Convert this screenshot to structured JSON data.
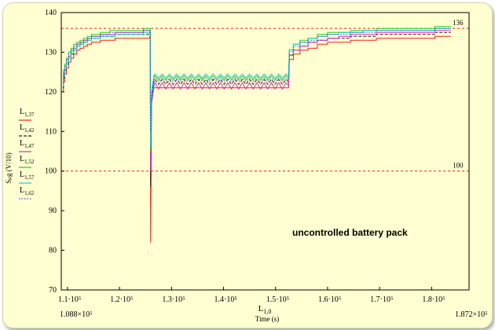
{
  "chart_data": {
    "type": "line",
    "title": "",
    "xlabel": "Time (s)",
    "xvar_label": {
      "main": "L",
      "sub": "1,0"
    },
    "ylabel": "Sₚg (V/10)",
    "xlim": [
      108800,
      187200
    ],
    "ylim": [
      70,
      140
    ],
    "x_ticks": [
      {
        "value": 110000,
        "label": "1.1·10⁵"
      },
      {
        "value": 120000,
        "label": "1.2·10⁵"
      },
      {
        "value": 130000,
        "label": "1.3·10⁵"
      },
      {
        "value": 140000,
        "label": "1.4·10⁵"
      },
      {
        "value": 150000,
        "label": "1.5·10⁵"
      },
      {
        "value": 160000,
        "label": "1.6·10⁵"
      },
      {
        "value": 170000,
        "label": "1.7·10⁵"
      },
      {
        "value": 180000,
        "label": "1.8·10⁵"
      }
    ],
    "x_range_labels": {
      "min": "1.088×10⁵",
      "max": "1.872×10⁵"
    },
    "y_ticks": [
      {
        "value": 140,
        "label": "140"
      },
      {
        "value": 130,
        "label": "130"
      },
      {
        "value": 120,
        "label": "120"
      },
      {
        "value": 110,
        "label": "110"
      },
      {
        "value": 100,
        "label": "100"
      },
      {
        "value": 90,
        "label": "90"
      },
      {
        "value": 80,
        "label": "80"
      },
      {
        "value": 70,
        "label": "70"
      }
    ],
    "reference_lines": [
      {
        "value": 136,
        "label": "136",
        "color": "#e8231f"
      },
      {
        "value": 100,
        "label": "100",
        "color": "#e8231f"
      }
    ],
    "annotation": "uncontrolled battery pack",
    "legend_position": "left",
    "series": [
      {
        "name": "L",
        "sub": "1,37",
        "color": "#e8231f",
        "dash": "solid",
        "start": 120,
        "plateau1": 134,
        "dip": 82,
        "mid": 121,
        "end": 134,
        "spread": 0
      },
      {
        "name": "L",
        "sub": "1,42",
        "color": "#222222",
        "dash": "dashed",
        "start": 121,
        "plateau1": 135,
        "dip": 96,
        "mid": 122.5,
        "end": 135,
        "spread": 0.6
      },
      {
        "name": "L",
        "sub": "1,47",
        "color": "#cc2fcc",
        "dash": "solid",
        "start": 122,
        "plateau1": 135.5,
        "dip": 100,
        "mid": 121.5,
        "end": 135.5,
        "spread": 0.8
      },
      {
        "name": "L",
        "sub": "1,52",
        "color": "#23c823",
        "dash": "solid",
        "start": 123,
        "plateau1": 136,
        "dip": 105,
        "mid": 123.5,
        "end": 136.5,
        "spread": 0.5
      },
      {
        "name": "L",
        "sub": "1,57",
        "color": "#1fc4d6",
        "dash": "solid",
        "start": 121.5,
        "plateau1": 135,
        "dip": 106,
        "mid": 124,
        "end": 136,
        "spread": 0.5
      },
      {
        "name": "L",
        "sub": "1,62",
        "color": "#3550d8",
        "dash": "dotted",
        "start": 122.5,
        "plateau1": 135.5,
        "dip": 110,
        "mid": 123,
        "end": 136,
        "spread": 0.4
      }
    ],
    "events": {
      "t_rise_end": 125800,
      "t_drop": 125900,
      "t_step_up": 152500,
      "t_end": 183700
    }
  }
}
